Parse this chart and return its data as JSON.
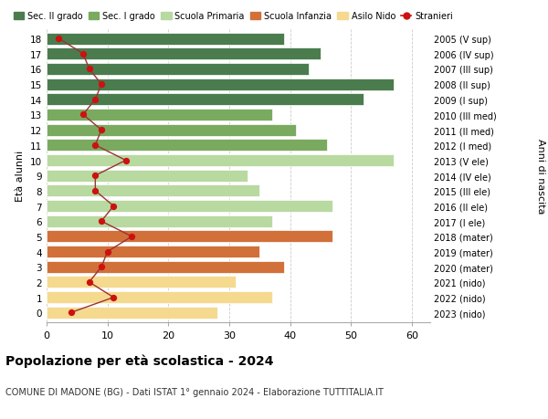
{
  "ages": [
    18,
    17,
    16,
    15,
    14,
    13,
    12,
    11,
    10,
    9,
    8,
    7,
    6,
    5,
    4,
    3,
    2,
    1,
    0
  ],
  "right_labels": [
    "2005 (V sup)",
    "2006 (IV sup)",
    "2007 (III sup)",
    "2008 (II sup)",
    "2009 (I sup)",
    "2010 (III med)",
    "2011 (II med)",
    "2012 (I med)",
    "2013 (V ele)",
    "2014 (IV ele)",
    "2015 (III ele)",
    "2016 (II ele)",
    "2017 (I ele)",
    "2018 (mater)",
    "2019 (mater)",
    "2020 (mater)",
    "2021 (nido)",
    "2022 (nido)",
    "2023 (nido)"
  ],
  "bar_values": [
    39,
    45,
    43,
    57,
    52,
    37,
    41,
    46,
    57,
    33,
    35,
    47,
    37,
    47,
    35,
    39,
    31,
    37,
    28
  ],
  "bar_colors": [
    "#4a7c4e",
    "#4a7c4e",
    "#4a7c4e",
    "#4a7c4e",
    "#4a7c4e",
    "#7aaa5f",
    "#7aaa5f",
    "#7aaa5f",
    "#b8d9a0",
    "#b8d9a0",
    "#b8d9a0",
    "#b8d9a0",
    "#b8d9a0",
    "#d2703a",
    "#d2703a",
    "#d2703a",
    "#f5d98e",
    "#f5d98e",
    "#f5d98e"
  ],
  "stranieri_values": [
    2,
    6,
    7,
    9,
    8,
    6,
    9,
    8,
    13,
    8,
    8,
    11,
    9,
    14,
    10,
    9,
    7,
    11,
    4
  ],
  "title_bold": "Popolazione per età scolastica - 2024",
  "subtitle": "COMUNE DI MADONE (BG) - Dati ISTAT 1° gennaio 2024 - Elaborazione TUTTITALIA.IT",
  "ylabel": "Età alunni",
  "ylabel2": "Anni di nascita",
  "xticks": [
    0,
    10,
    20,
    30,
    40,
    50,
    60
  ],
  "legend_items": [
    {
      "label": "Sec. II grado",
      "color": "#4a7c4e"
    },
    {
      "label": "Sec. I grado",
      "color": "#7aaa5f"
    },
    {
      "label": "Scuola Primaria",
      "color": "#b8d9a0"
    },
    {
      "label": "Scuola Infanzia",
      "color": "#d2703a"
    },
    {
      "label": "Asilo Nido",
      "color": "#f5d98e"
    },
    {
      "label": "Stranieri",
      "color": "#cc1111"
    }
  ],
  "stranieri_line_color": "#993333",
  "stranieri_marker_color": "#cc1111",
  "bg_color": "#ffffff",
  "grid_color": "#cccccc"
}
